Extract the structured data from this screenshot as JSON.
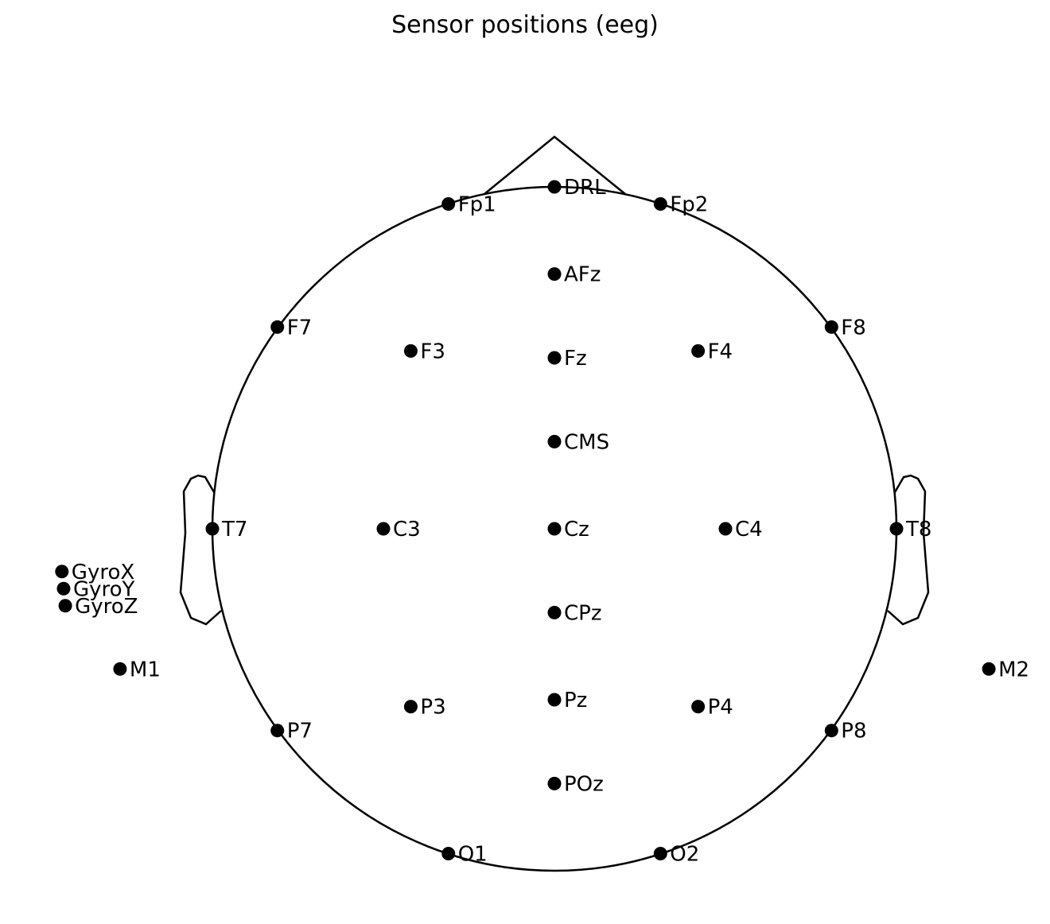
{
  "title": "Sensor positions (eeg)",
  "chart_data": {
    "type": "scatter",
    "title": "Sensor positions (eeg)",
    "xlabel": "",
    "ylabel": "",
    "grid": false,
    "axes_visible": false,
    "units": "head radius (head circle radius = 1; nose at +y)",
    "head_outline": {
      "shape": "circle",
      "radius": 1.0,
      "nose": true,
      "ears": true
    },
    "marker_color": "#000000",
    "points": [
      {
        "label": "DRL",
        "x": 0.0,
        "y": 1.0
      },
      {
        "label": "Fp1",
        "x": -0.31,
        "y": 0.95
      },
      {
        "label": "Fp2",
        "x": 0.31,
        "y": 0.95
      },
      {
        "label": "AFz",
        "x": 0.0,
        "y": 0.745
      },
      {
        "label": "F7",
        "x": -0.81,
        "y": 0.59
      },
      {
        "label": "F3",
        "x": -0.42,
        "y": 0.52
      },
      {
        "label": "Fz",
        "x": 0.0,
        "y": 0.5
      },
      {
        "label": "F4",
        "x": 0.42,
        "y": 0.52
      },
      {
        "label": "F8",
        "x": 0.81,
        "y": 0.59
      },
      {
        "label": "CMS",
        "x": 0.0,
        "y": 0.255
      },
      {
        "label": "T7",
        "x": -1.0,
        "y": 0.0
      },
      {
        "label": "C3",
        "x": -0.5,
        "y": 0.0
      },
      {
        "label": "Cz",
        "x": 0.0,
        "y": 0.0
      },
      {
        "label": "C4",
        "x": 0.5,
        "y": 0.0
      },
      {
        "label": "T8",
        "x": 1.0,
        "y": 0.0
      },
      {
        "label": "GyroX",
        "x": -1.44,
        "y": -0.125
      },
      {
        "label": "GyroY",
        "x": -1.435,
        "y": -0.175
      },
      {
        "label": "GyroZ",
        "x": -1.43,
        "y": -0.225
      },
      {
        "label": "M1",
        "x": -1.27,
        "y": -0.41
      },
      {
        "label": "M2",
        "x": 1.27,
        "y": -0.41
      },
      {
        "label": "CPz",
        "x": 0.0,
        "y": -0.245
      },
      {
        "label": "P7",
        "x": -0.81,
        "y": -0.59
      },
      {
        "label": "P3",
        "x": -0.42,
        "y": -0.52
      },
      {
        "label": "Pz",
        "x": 0.0,
        "y": -0.5
      },
      {
        "label": "P4",
        "x": 0.42,
        "y": -0.52
      },
      {
        "label": "P8",
        "x": 0.81,
        "y": -0.59
      },
      {
        "label": "POz",
        "x": 0.0,
        "y": -0.745
      },
      {
        "label": "O1",
        "x": -0.31,
        "y": -0.95
      },
      {
        "label": "O2",
        "x": 0.31,
        "y": -0.95
      }
    ]
  }
}
